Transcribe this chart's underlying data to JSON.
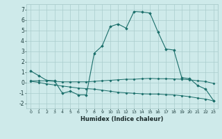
{
  "xlabel": "Humidex (Indice chaleur)",
  "background_color": "#ceeaea",
  "grid_color": "#aacccc",
  "line_color": "#1a6e6a",
  "x_values": [
    0,
    1,
    2,
    3,
    4,
    5,
    6,
    7,
    8,
    9,
    10,
    11,
    12,
    13,
    14,
    15,
    16,
    17,
    18,
    19,
    20,
    21,
    22,
    23
  ],
  "series1": [
    1.1,
    0.65,
    0.2,
    0.15,
    -1.05,
    -0.85,
    -1.2,
    -1.2,
    2.8,
    3.5,
    5.35,
    5.6,
    5.2,
    6.8,
    6.75,
    6.65,
    4.85,
    3.2,
    3.1,
    0.45,
    0.35,
    -0.3,
    -0.65,
    -1.75
  ],
  "series2": [
    0.15,
    0.15,
    0.15,
    0.1,
    0.05,
    0.05,
    0.05,
    0.05,
    0.1,
    0.15,
    0.2,
    0.25,
    0.3,
    0.3,
    0.35,
    0.38,
    0.35,
    0.35,
    0.33,
    0.3,
    0.25,
    0.15,
    0.08,
    -0.1
  ],
  "series3": [
    0.1,
    0.0,
    -0.15,
    -0.25,
    -0.35,
    -0.45,
    -0.55,
    -0.6,
    -0.65,
    -0.75,
    -0.85,
    -0.95,
    -1.0,
    -1.05,
    -1.1,
    -1.12,
    -1.12,
    -1.18,
    -1.2,
    -1.28,
    -1.38,
    -1.5,
    -1.6,
    -1.78
  ],
  "ylim": [
    -2.5,
    7.5
  ],
  "xlim": [
    -0.5,
    23.5
  ],
  "yticks": [
    -2,
    -1,
    0,
    1,
    2,
    3,
    4,
    5,
    6,
    7
  ]
}
